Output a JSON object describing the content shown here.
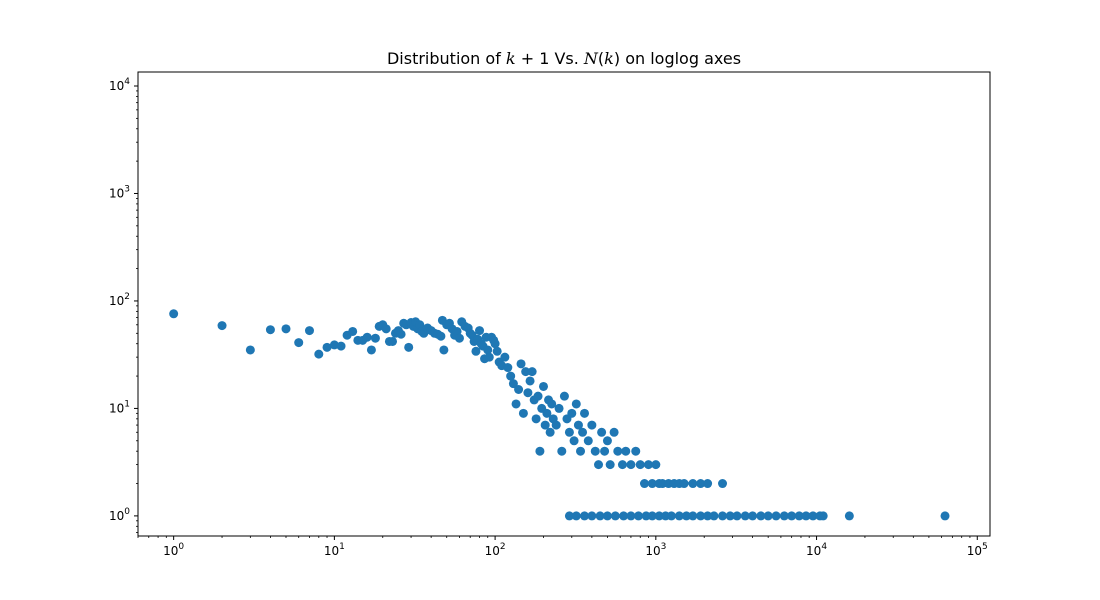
{
  "chart_data": {
    "type": "scatter",
    "title": {
      "prefix": "Distribution of ",
      "math1": "k",
      "mid1": " + 1 Vs. ",
      "math2": "N",
      "mid2": "(",
      "math3": "k",
      "suffix": ") on loglog axes"
    },
    "xlabel": "",
    "ylabel": "",
    "xscale": "log",
    "yscale": "log",
    "xlim": [
      0.6,
      120000
    ],
    "ylim": [
      0.65,
      13500
    ],
    "grid": false,
    "marker_color": "#1f77b4",
    "x_ticks": [
      {
        "base": "10",
        "exp": "0",
        "value": 1
      },
      {
        "base": "10",
        "exp": "1",
        "value": 10
      },
      {
        "base": "10",
        "exp": "2",
        "value": 100
      },
      {
        "base": "10",
        "exp": "3",
        "value": 1000
      },
      {
        "base": "10",
        "exp": "4",
        "value": 10000
      },
      {
        "base": "10",
        "exp": "5",
        "value": 100000
      }
    ],
    "y_ticks": [
      {
        "base": "10",
        "exp": "0",
        "value": 1
      },
      {
        "base": "10",
        "exp": "1",
        "value": 10
      },
      {
        "base": "10",
        "exp": "2",
        "value": 100
      },
      {
        "base": "10",
        "exp": "3",
        "value": 1000
      },
      {
        "base": "10",
        "exp": "4",
        "value": 10000
      }
    ],
    "points": [
      [
        1,
        76
      ],
      [
        2,
        59
      ],
      [
        3,
        35
      ],
      [
        4,
        54
      ],
      [
        5,
        55
      ],
      [
        6,
        41
      ],
      [
        7,
        53
      ],
      [
        8,
        32
      ],
      [
        9,
        37
      ],
      [
        10,
        39
      ],
      [
        11,
        38
      ],
      [
        12,
        48
      ],
      [
        13,
        52
      ],
      [
        14,
        43
      ],
      [
        15,
        43
      ],
      [
        16,
        46
      ],
      [
        17,
        35
      ],
      [
        18,
        45
      ],
      [
        19,
        58
      ],
      [
        20,
        60
      ],
      [
        21,
        55
      ],
      [
        22,
        42
      ],
      [
        23,
        42
      ],
      [
        24,
        50
      ],
      [
        25,
        53
      ],
      [
        26,
        49
      ],
      [
        27,
        62
      ],
      [
        28,
        60
      ],
      [
        29,
        37
      ],
      [
        30,
        63
      ],
      [
        31,
        58
      ],
      [
        32,
        64
      ],
      [
        33,
        55
      ],
      [
        34,
        60
      ],
      [
        35,
        52
      ],
      [
        36,
        50
      ],
      [
        38,
        56
      ],
      [
        40,
        53
      ],
      [
        42,
        50
      ],
      [
        44,
        49
      ],
      [
        46,
        47
      ],
      [
        48,
        35
      ],
      [
        50,
        60
      ],
      [
        47,
        66
      ],
      [
        52,
        62
      ],
      [
        54,
        55
      ],
      [
        56,
        48
      ],
      [
        58,
        52
      ],
      [
        60,
        45
      ],
      [
        62,
        64
      ],
      [
        65,
        58
      ],
      [
        68,
        56
      ],
      [
        70,
        50
      ],
      [
        72,
        48
      ],
      [
        74,
        42
      ],
      [
        76,
        34
      ],
      [
        78,
        44
      ],
      [
        80,
        53
      ],
      [
        82,
        40
      ],
      [
        84,
        38
      ],
      [
        86,
        29
      ],
      [
        88,
        46
      ],
      [
        90,
        35
      ],
      [
        92,
        30
      ],
      [
        95,
        46
      ],
      [
        98,
        43
      ],
      [
        100,
        40
      ],
      [
        103,
        34
      ],
      [
        106,
        27
      ],
      [
        110,
        25
      ],
      [
        115,
        30
      ],
      [
        120,
        24
      ],
      [
        125,
        20
      ],
      [
        130,
        17
      ],
      [
        135,
        11
      ],
      [
        140,
        15
      ],
      [
        145,
        26
      ],
      [
        150,
        9
      ],
      [
        155,
        22
      ],
      [
        160,
        14
      ],
      [
        165,
        18
      ],
      [
        170,
        22
      ],
      [
        175,
        12
      ],
      [
        180,
        8
      ],
      [
        185,
        13
      ],
      [
        190,
        4
      ],
      [
        195,
        10
      ],
      [
        200,
        16
      ],
      [
        205,
        7
      ],
      [
        210,
        9
      ],
      [
        215,
        12
      ],
      [
        220,
        6
      ],
      [
        225,
        11
      ],
      [
        230,
        8
      ],
      [
        240,
        7
      ],
      [
        250,
        10
      ],
      [
        260,
        4
      ],
      [
        270,
        13
      ],
      [
        280,
        8
      ],
      [
        290,
        6
      ],
      [
        300,
        9
      ],
      [
        310,
        5
      ],
      [
        320,
        11
      ],
      [
        330,
        7
      ],
      [
        340,
        4
      ],
      [
        350,
        6
      ],
      [
        360,
        9
      ],
      [
        380,
        5
      ],
      [
        400,
        7
      ],
      [
        420,
        4
      ],
      [
        440,
        3
      ],
      [
        460,
        6
      ],
      [
        480,
        4
      ],
      [
        500,
        5
      ],
      [
        520,
        3
      ],
      [
        550,
        6
      ],
      [
        580,
        4
      ],
      [
        620,
        3
      ],
      [
        650,
        4
      ],
      [
        700,
        3
      ],
      [
        750,
        4
      ],
      [
        800,
        3
      ],
      [
        850,
        2
      ],
      [
        900,
        3
      ],
      [
        950,
        2
      ],
      [
        1000,
        3
      ],
      [
        1050,
        2
      ],
      [
        1100,
        2
      ],
      [
        1200,
        2
      ],
      [
        1300,
        2
      ],
      [
        1400,
        2
      ],
      [
        1500,
        2
      ],
      [
        1700,
        2
      ],
      [
        1900,
        2
      ],
      [
        2100,
        2
      ],
      [
        2600,
        2
      ],
      [
        290,
        1
      ],
      [
        320,
        1
      ],
      [
        360,
        1
      ],
      [
        400,
        1
      ],
      [
        450,
        1
      ],
      [
        500,
        1
      ],
      [
        560,
        1
      ],
      [
        630,
        1
      ],
      [
        700,
        1
      ],
      [
        780,
        1
      ],
      [
        870,
        1
      ],
      [
        950,
        1
      ],
      [
        1050,
        1
      ],
      [
        1150,
        1
      ],
      [
        1250,
        1
      ],
      [
        1400,
        1
      ],
      [
        1550,
        1
      ],
      [
        1700,
        1
      ],
      [
        1900,
        1
      ],
      [
        2100,
        1
      ],
      [
        2300,
        1
      ],
      [
        2600,
        1
      ],
      [
        2900,
        1
      ],
      [
        3200,
        1
      ],
      [
        3600,
        1
      ],
      [
        4000,
        1
      ],
      [
        4500,
        1
      ],
      [
        5000,
        1
      ],
      [
        5600,
        1
      ],
      [
        6300,
        1
      ],
      [
        7000,
        1
      ],
      [
        7800,
        1
      ],
      [
        8600,
        1
      ],
      [
        9500,
        1
      ],
      [
        10500,
        1
      ],
      [
        11000,
        1
      ],
      [
        16000,
        1
      ],
      [
        63000,
        1
      ]
    ]
  }
}
